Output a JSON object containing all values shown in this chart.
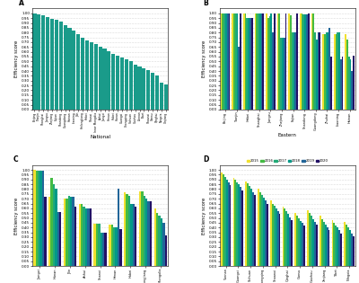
{
  "national": {
    "provinces": [
      "Beijing",
      "Tianjin",
      "Shanghai",
      "Jiangsu",
      "Zhejiang",
      "Fujian",
      "Shandong",
      "Guangdong",
      "Hainan",
      "Liaoning",
      "Jilin",
      "Heilongjiang",
      "Hebei",
      "Shanxi",
      "Inner Mongolia",
      "Anhui",
      "Jiangxi",
      "Henan",
      "Hubei",
      "Hunan",
      "Guangxi",
      "Chongqing",
      "Sichuan",
      "Guizhou",
      "Yunnan",
      "Tibet",
      "Shaanxi",
      "Gansu",
      "Qinghai",
      "Ningxia",
      "Xinjiang"
    ],
    "values": [
      1.0,
      0.99,
      0.98,
      0.96,
      0.94,
      0.93,
      0.91,
      0.88,
      0.85,
      0.82,
      0.78,
      0.75,
      0.72,
      0.7,
      0.68,
      0.65,
      0.63,
      0.61,
      0.58,
      0.56,
      0.54,
      0.52,
      0.5,
      0.47,
      0.45,
      0.43,
      0.41,
      0.38,
      0.35,
      0.28,
      0.26
    ],
    "color": "#1a9b8a"
  },
  "eastern": {
    "provinces": [
      "Beijing",
      "Tianjin",
      "Hebei",
      "Shanghai",
      "Jiangsu",
      "Zhejiang",
      "Fujian",
      "Shandong",
      "Guangdong",
      "Zhuhai",
      "Liaoning",
      "Hainan"
    ],
    "values": {
      "2015": [
        1.0,
        1.0,
        1.0,
        1.0,
        1.0,
        1.0,
        1.0,
        1.0,
        1.0,
        0.78,
        0.78,
        0.78
      ],
      "2016": [
        1.0,
        1.0,
        1.0,
        1.0,
        0.95,
        1.0,
        0.98,
        1.0,
        1.0,
        0.78,
        0.78,
        0.73
      ],
      "2017": [
        1.0,
        1.0,
        0.95,
        1.0,
        0.97,
        0.75,
        0.8,
        0.99,
        0.8,
        0.8,
        0.8,
        0.55
      ],
      "2018": [
        1.0,
        1.0,
        0.95,
        1.0,
        1.0,
        0.75,
        0.8,
        0.99,
        0.73,
        0.8,
        0.8,
        0.52
      ],
      "2019": [
        1.0,
        0.65,
        0.95,
        1.0,
        0.8,
        0.75,
        0.8,
        0.99,
        0.8,
        0.85,
        0.52,
        0.4
      ],
      "2020": [
        1.0,
        1.0,
        0.95,
        1.0,
        1.0,
        1.0,
        1.0,
        1.0,
        0.8,
        0.55,
        0.55,
        0.56
      ]
    }
  },
  "central": {
    "provinces": [
      "Jiangxi",
      "Hunan",
      "Jilin",
      "Anhui",
      "Shanxi",
      "Henan",
      "Hubei",
      "Heilongjiang",
      "Inner Mongolia"
    ],
    "values": {
      "2015": [
        1.0,
        0.72,
        0.7,
        0.65,
        0.44,
        0.43,
        0.77,
        0.78,
        0.6
      ],
      "2016": [
        0.99,
        0.92,
        0.7,
        0.65,
        0.44,
        0.43,
        0.75,
        0.78,
        0.55
      ],
      "2017": [
        0.99,
        0.85,
        0.73,
        0.62,
        0.44,
        0.4,
        0.73,
        0.73,
        0.52
      ],
      "2018": [
        0.99,
        0.8,
        0.72,
        0.6,
        0.35,
        0.4,
        0.65,
        0.7,
        0.5
      ],
      "2019": [
        0.99,
        0.56,
        0.72,
        0.6,
        0.35,
        0.8,
        0.65,
        0.67,
        0.45
      ],
      "2020": [
        0.72,
        0.56,
        0.62,
        0.6,
        0.35,
        0.38,
        0.62,
        0.67,
        0.32
      ]
    }
  },
  "western": {
    "provinces": [
      "Yunnan",
      "Guangxi",
      "Sichuan",
      "Chongqing",
      "Shaanxi",
      "Qinghai",
      "Gansu",
      "Guizhou",
      "Xinjiang",
      "Tibet",
      "Ningxia"
    ],
    "values": {
      "2015": [
        0.97,
        0.92,
        0.88,
        0.8,
        0.68,
        0.62,
        0.55,
        0.58,
        0.52,
        0.48,
        0.46
      ],
      "2016": [
        0.95,
        0.9,
        0.86,
        0.77,
        0.65,
        0.6,
        0.52,
        0.55,
        0.49,
        0.45,
        0.43
      ],
      "2017": [
        0.93,
        0.87,
        0.83,
        0.74,
        0.63,
        0.57,
        0.5,
        0.52,
        0.46,
        0.42,
        0.4
      ],
      "2018": [
        0.9,
        0.85,
        0.8,
        0.71,
        0.6,
        0.54,
        0.47,
        0.49,
        0.43,
        0.4,
        0.37
      ],
      "2019": [
        0.87,
        0.82,
        0.77,
        0.68,
        0.57,
        0.51,
        0.45,
        0.46,
        0.4,
        0.37,
        0.34
      ],
      "2020": [
        0.84,
        0.79,
        0.74,
        0.65,
        0.54,
        0.48,
        0.42,
        0.43,
        0.37,
        0.34,
        0.31
      ]
    }
  },
  "years": [
    "2015",
    "2016",
    "2017",
    "2018",
    "2019",
    "2020"
  ],
  "year_colors": {
    "2015": "#f0e030",
    "2016": "#44bb44",
    "2017": "#22aa77",
    "2018": "#009988",
    "2019": "#226699",
    "2020": "#221166"
  },
  "yticks": [
    0.0,
    0.05,
    0.1,
    0.15,
    0.2,
    0.25,
    0.3,
    0.35,
    0.4,
    0.45,
    0.5,
    0.55,
    0.6,
    0.65,
    0.7,
    0.75,
    0.8,
    0.85,
    0.9,
    0.95,
    1.0
  ],
  "bar_color_A": "#1a9b8a"
}
